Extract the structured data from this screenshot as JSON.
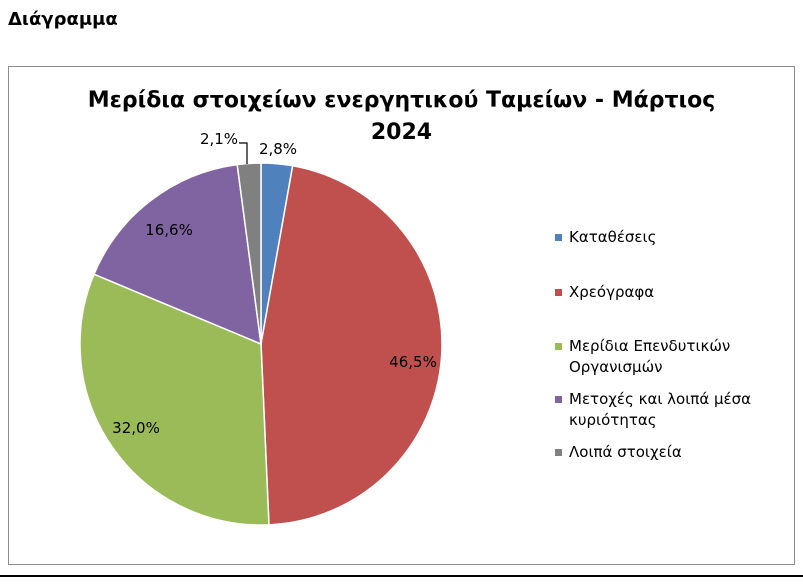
{
  "page": {
    "heading": "Διάγραμμα"
  },
  "chart_data": {
    "type": "pie",
    "title_line1": "Μερίδια στοιχείων ενεργητικού Ταμείων -  Μάρτιος",
    "title_line2": "2024",
    "legend_position": "right",
    "slices": [
      {
        "name": "Καταθέσεις",
        "value": 2.8,
        "label": "2,8%",
        "color": "#4f81bd"
      },
      {
        "name": "Χρεόγραφα",
        "value": 46.5,
        "label": "46,5%",
        "color": "#c0504d"
      },
      {
        "name": "Μερίδια Επενδυτικών Οργανισμών",
        "value": 32.0,
        "label": "32,0%",
        "color": "#9bbb59"
      },
      {
        "name": "Μετοχές και λοιπά μέσα κυριότητας",
        "value": 16.6,
        "label": "16,6%",
        "color": "#8064a2"
      },
      {
        "name": "Λοιπά στοιχεία",
        "value": 2.1,
        "label": "2,1%",
        "color": "#808080"
      }
    ],
    "legend_lines": [
      [
        "Καταθέσεις"
      ],
      [
        "Χρεόγραφα"
      ],
      [
        "Μερίδια Επενδυτικών",
        "Οργανισμών"
      ],
      [
        "Μετοχές και λοιπά μέσα",
        "κυριότητας"
      ],
      [
        "Λοιπά στοιχεία"
      ]
    ]
  }
}
